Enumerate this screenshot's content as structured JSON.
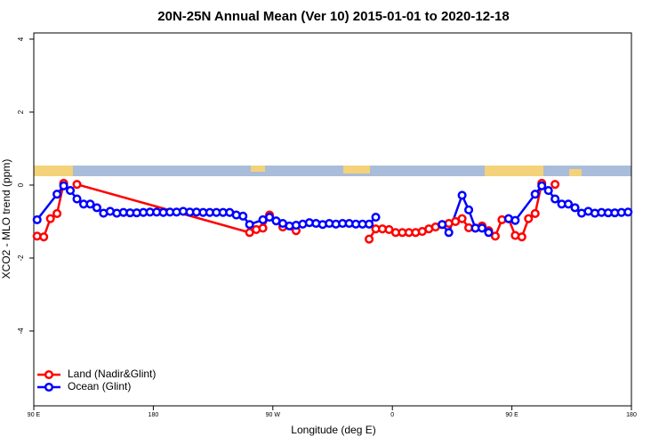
{
  "chart_data": {
    "type": "line",
    "title": "20N-25N Annual Mean (Ver 10)   2015-01-01 to 2020-12-18",
    "x_label": "Longitude (deg E)",
    "y_label": "XCO2 - MLO trend (ppm)",
    "xlim": [
      90,
      540
    ],
    "xticks": [
      {
        "value": 90,
        "label": "90 E"
      },
      {
        "value": 180,
        "label": "180"
      },
      {
        "value": 270,
        "label": "90 W"
      },
      {
        "value": 360,
        "label": "0"
      },
      {
        "value": 450,
        "label": "90 E"
      },
      {
        "value": 540,
        "label": "180"
      }
    ],
    "ylim": [
      -6.05,
      4.17
    ],
    "yticks": [
      -4,
      -2,
      0,
      2,
      4
    ],
    "legend": "bottom-left",
    "series": [
      {
        "name": "Land (Nadir&Glint)",
        "color": "#ff0000",
        "x": [
          92.5,
          97.5,
          102.5,
          107.5,
          112.5,
          117.5,
          122.5,
          252.5,
          257.5,
          262.5,
          267.5,
          277.5,
          287.5,
          292.5,
          342.5,
          347.5,
          352.5,
          357.5,
          362.5,
          367.5,
          372.5,
          377.5,
          382.5,
          387.5,
          392.5,
          397.5,
          402.5,
          407.5,
          412.5,
          417.5,
          422.5,
          427.5,
          432.5,
          437.5,
          442.5,
          447.5,
          452.5,
          457.5,
          462.5,
          467.5,
          472.5,
          477.5,
          482.5
        ],
        "values": [
          -1.4,
          -1.42,
          -0.92,
          -0.78,
          0.05,
          null,
          0.02,
          -1.3,
          -1.22,
          -1.18,
          -0.82,
          -1.15,
          -1.25,
          null,
          -1.48,
          -1.2,
          -1.2,
          -1.22,
          -1.3,
          -1.3,
          -1.3,
          -1.3,
          -1.27,
          -1.2,
          -1.15,
          -1.08,
          -1.05,
          -1.0,
          -0.92,
          -1.17,
          -1.18,
          -1.12,
          -1.25,
          -1.4,
          -0.95,
          -0.92,
          -1.38,
          -1.42,
          -0.92,
          -0.78,
          0.05,
          null,
          0.02
        ]
      },
      {
        "name": "Ocean (Glint)",
        "color": "#0000ff",
        "x": [
          92.5,
          107.5,
          112.5,
          117.5,
          122.5,
          127.5,
          132.5,
          137.5,
          142.5,
          147.5,
          152.5,
          157.5,
          162.5,
          167.5,
          172.5,
          177.5,
          182.5,
          187.5,
          192.5,
          197.5,
          202.5,
          207.5,
          212.5,
          217.5,
          222.5,
          227.5,
          232.5,
          237.5,
          242.5,
          247.5,
          252.5,
          262.5,
          267.5,
          272.5,
          277.5,
          282.5,
          287.5,
          292.5,
          297.5,
          302.5,
          307.5,
          312.5,
          317.5,
          322.5,
          327.5,
          332.5,
          337.5,
          342.5,
          347.5,
          372.5,
          397.5,
          402.5,
          412.5,
          417.5,
          422.5,
          427.5,
          432.5,
          440,
          447.5,
          452.5,
          467.5,
          472.5,
          477.5,
          482.5,
          487.5,
          492.5,
          497.5,
          502.5,
          507.5,
          512.5,
          517.5,
          522.5,
          527.5,
          532.5,
          537.5
        ],
        "values": [
          -0.95,
          -0.25,
          -0.02,
          -0.15,
          -0.38,
          -0.52,
          -0.52,
          -0.62,
          -0.77,
          -0.72,
          -0.77,
          -0.75,
          -0.76,
          -0.76,
          -0.75,
          -0.74,
          -0.74,
          -0.75,
          -0.74,
          -0.74,
          -0.72,
          -0.74,
          -0.74,
          -0.75,
          -0.75,
          -0.75,
          -0.75,
          -0.75,
          -0.82,
          -0.85,
          -1.08,
          -0.95,
          -0.88,
          -0.98,
          -1.05,
          -1.12,
          -1.1,
          -1.07,
          -1.03,
          -1.05,
          -1.08,
          -1.05,
          -1.07,
          -1.05,
          -1.05,
          -1.07,
          -1.07,
          -1.07,
          -0.88,
          null,
          -1.08,
          -1.3,
          -0.28,
          -0.68,
          -1.18,
          -1.18,
          -1.3,
          null,
          -0.92,
          -0.97,
          -0.25,
          -0.02,
          -0.15,
          -0.38,
          -0.52,
          -0.52,
          -0.62,
          -0.77,
          -0.72,
          -0.77,
          -0.75,
          -0.76,
          -0.76,
          -0.75,
          -0.74
        ]
      }
    ]
  }
}
